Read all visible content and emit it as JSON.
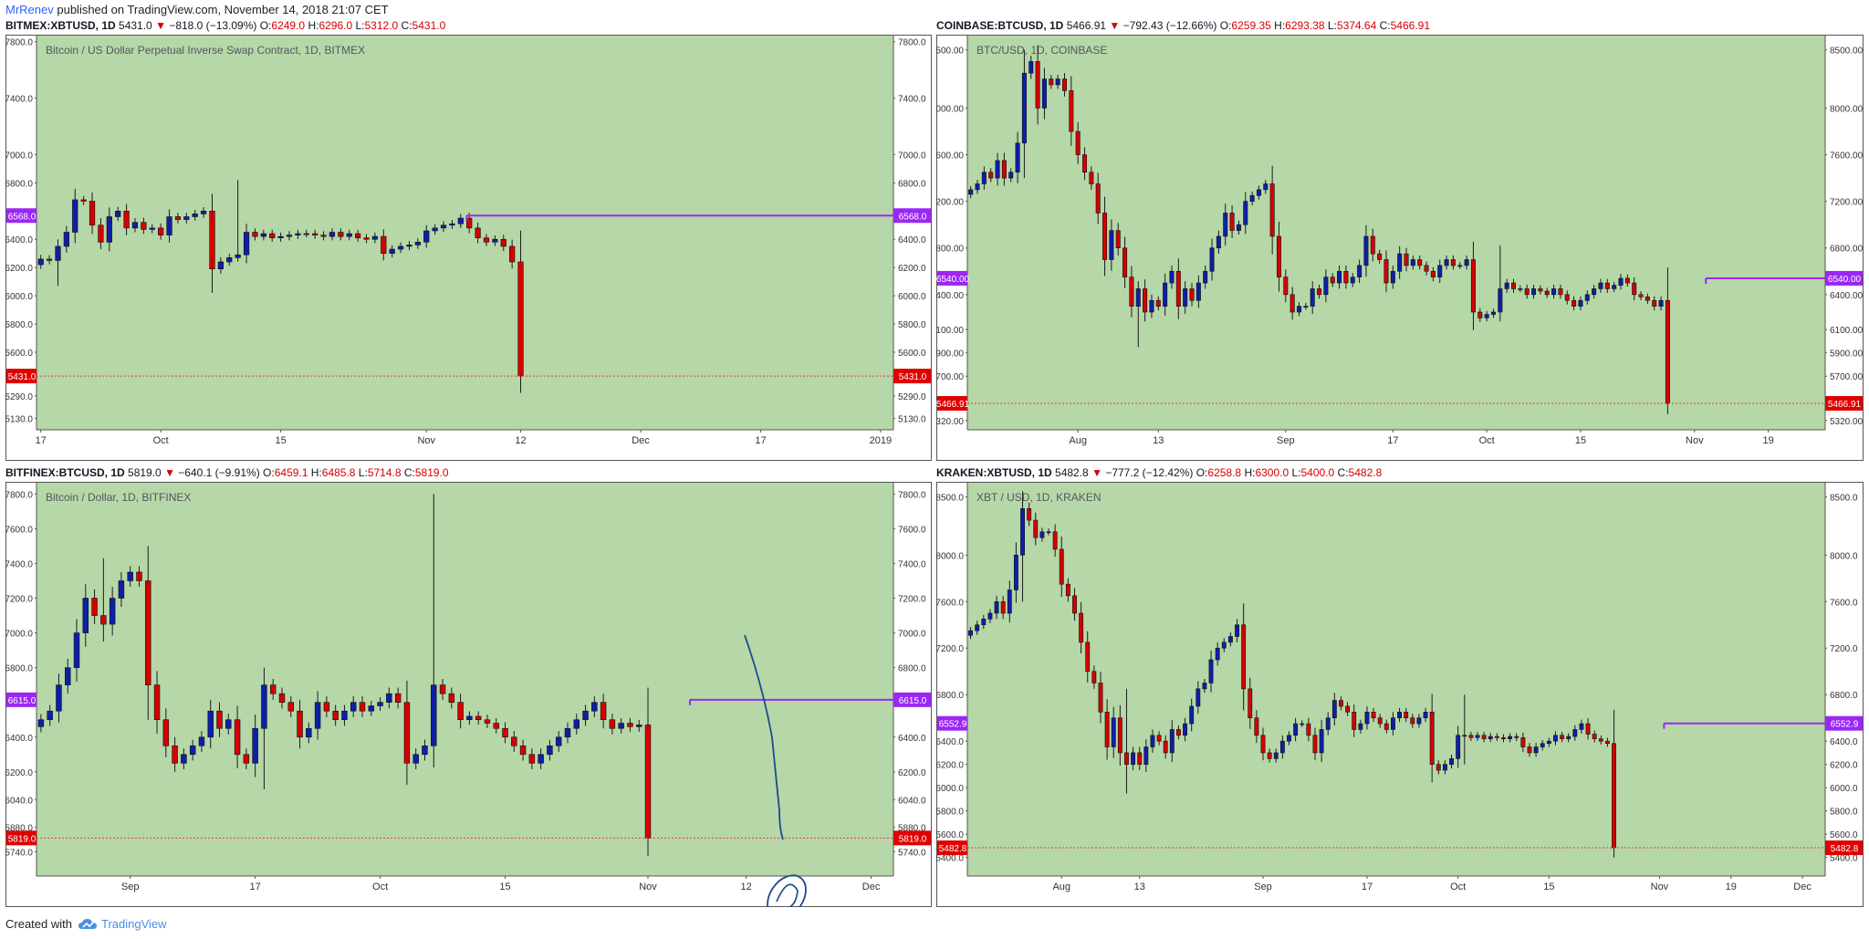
{
  "publisher": {
    "author": "MrRenev",
    "text": " published on TradingView.com, November 14, 2018 21:07 CET"
  },
  "footer": {
    "created_with": "Created with",
    "brand": "TradingView"
  },
  "colors": {
    "background": "#b6d7a8",
    "up": "#0d1fa8",
    "down": "#d50000",
    "level_line": "#9c27f5",
    "price_line": "#e53935"
  },
  "chart_data": [
    {
      "type": "candlestick",
      "header": {
        "symbol": "BITMEX:XBTUSD, 1D",
        "last": "5431.0",
        "change": "−818.0 (−13.09%)",
        "o": "6249.0",
        "h": "6296.0",
        "l": "5312.0",
        "c": "5431.0"
      },
      "title": "Bitcoin / US Dollar Perpetual Inverse Swap Contract, 1D, BITMEX",
      "ylim": [
        5050,
        7850
      ],
      "y_ticks": [
        "5130.0",
        "5290.0",
        "5600.0",
        "5800.0",
        "6000.0",
        "6200.0",
        "6400.0",
        "6800.0",
        "7000.0",
        "7400.0",
        "7800.0"
      ],
      "x_ticks": [
        {
          "d": 0,
          "label": "17"
        },
        {
          "d": 14,
          "label": "Oct"
        },
        {
          "d": 28,
          "label": "15"
        },
        {
          "d": 45,
          "label": "Nov"
        },
        {
          "d": 56,
          "label": "12"
        },
        {
          "d": 70,
          "label": "Dec"
        },
        {
          "d": 84,
          "label": "17"
        },
        {
          "d": 98,
          "label": "2019"
        }
      ],
      "level": {
        "value": 6568.0,
        "label": "6568.0",
        "from_index": 50
      },
      "last_price": {
        "value": 5431.0,
        "label": "5431.0"
      },
      "closes": [
        6260,
        6250,
        6350,
        6450,
        6680,
        6670,
        6500,
        6380,
        6560,
        6600,
        6480,
        6520,
        6470,
        6480,
        6430,
        6560,
        6540,
        6560,
        6580,
        6600,
        6190,
        6240,
        6270,
        6290,
        6450,
        6420,
        6440,
        6410,
        6420,
        6430,
        6440,
        6440,
        6430,
        6420,
        6450,
        6420,
        6440,
        6410,
        6400,
        6420,
        6300,
        6330,
        6350,
        6360,
        6380,
        6460,
        6480,
        6500,
        6510,
        6550,
        6480,
        6410,
        6380,
        6400,
        6350,
        6240,
        5431
      ],
      "wick_frac": 0.25,
      "spikes": [
        {
          "i": 23,
          "high": 6820,
          "low": 6300
        },
        {
          "i": 20,
          "high": 6500,
          "low": 6020
        },
        {
          "i": 2,
          "high": 6400,
          "low": 6070
        }
      ],
      "last_low": 5312,
      "plot": {
        "x0": 50,
        "x1": 975,
        "y0": 36,
        "y1": 478
      },
      "d_start": 0,
      "d_end": 100
    },
    {
      "type": "candlestick",
      "header": {
        "symbol": "COINBASE:BTCUSD, 1D",
        "last": "5466.91",
        "change": "−792.43 (−12.66%)",
        "o": "6259.35",
        "h": "6293.38",
        "l": "5374.64",
        "c": "5466.91"
      },
      "title": "BTC/USD, 1D, COINBASE",
      "ylim": [
        5240,
        8630
      ],
      "y_ticks": [
        "5320.00",
        "5500.00",
        "5700.00",
        "5900.00",
        "6100.00",
        "6400.00",
        "6800.00",
        "7200.00",
        "7600.00",
        "8000.00",
        "8500.00"
      ],
      "x_ticks": [
        {
          "d": 16,
          "label": "Aug"
        },
        {
          "d": 28,
          "label": "13"
        },
        {
          "d": 47,
          "label": "Sep"
        },
        {
          "d": 63,
          "label": "17"
        },
        {
          "d": 77,
          "label": "Oct"
        },
        {
          "d": 91,
          "label": "15"
        },
        {
          "d": 108,
          "label": "Nov"
        },
        {
          "d": 119,
          "label": "19"
        }
      ],
      "level": {
        "value": 6540.0,
        "label": "6540.00",
        "from_index": 110
      },
      "last_price": {
        "value": 5466.91,
        "label": "5466.91"
      },
      "closes": [
        7300,
        7350,
        7450,
        7400,
        7550,
        7400,
        7450,
        7700,
        8300,
        8400,
        8000,
        8250,
        8200,
        8250,
        8150,
        7800,
        7600,
        7450,
        7350,
        7100,
        6700,
        6950,
        6800,
        6550,
        6300,
        6450,
        6250,
        6350,
        6300,
        6500,
        6600,
        6300,
        6450,
        6350,
        6500,
        6600,
        6800,
        6900,
        7100,
        6950,
        7000,
        7200,
        7250,
        7300,
        7350,
        6900,
        6550,
        6400,
        6250,
        6300,
        6300,
        6450,
        6400,
        6550,
        6500,
        6600,
        6500,
        6550,
        6650,
        6900,
        6750,
        6700,
        6500,
        6600,
        6750,
        6650,
        6700,
        6650,
        6600,
        6550,
        6650,
        6700,
        6650,
        6650,
        6700,
        6250,
        6200,
        6230,
        6250,
        6450,
        6500,
        6450,
        6450,
        6400,
        6450,
        6430,
        6400,
        6450,
        6400,
        6350,
        6300,
        6350,
        6400,
        6450,
        6500,
        6450,
        6480,
        6540,
        6500,
        6400,
        6380,
        6350,
        6300,
        6350,
        5466.91
      ],
      "wick_frac": 0.3,
      "spikes": [
        {
          "i": 8,
          "high": 8500,
          "low": 7400
        },
        {
          "i": 79,
          "high": 6820,
          "low": 6200
        },
        {
          "i": 25,
          "high": 6400,
          "low": 5950
        }
      ],
      "last_low": 5374,
      "plot": {
        "x0": 1031,
        "x1": 1985,
        "y0": 36,
        "y1": 478
      },
      "d_start": 0,
      "d_end": 128
    },
    {
      "type": "candlestick",
      "header": {
        "symbol": "BITFINEX:BTCUSD, 1D",
        "last": "5819.0",
        "change": "−640.1 (−9.91%)",
        "o": "6459.1",
        "h": "6485.8",
        "l": "5714.8",
        "c": "5819.0"
      },
      "title": "Bitcoin / Dollar, 1D, BITFINEX",
      "ylim": [
        5600,
        7870
      ],
      "y_ticks": [
        "5740.0",
        "5880.0",
        "6040.0",
        "6200.0",
        "6400.0",
        "6800.0",
        "7000.0",
        "7200.0",
        "7400.0",
        "7600.0",
        "7800.0"
      ],
      "x_ticks": [
        {
          "d": 10,
          "label": "Sep"
        },
        {
          "d": 24,
          "label": "17"
        },
        {
          "d": 38,
          "label": "Oct"
        },
        {
          "d": 52,
          "label": "15"
        },
        {
          "d": 68,
          "label": "Nov"
        },
        {
          "d": 79,
          "label": "12"
        },
        {
          "d": 93,
          "label": "Dec"
        }
      ],
      "level": {
        "value": 6615.0,
        "label": "6615.0",
        "from_index": 73
      },
      "last_price": {
        "value": 5819.0,
        "label": "5819.0"
      },
      "closes": [
        6500,
        6550,
        6700,
        6800,
        7000,
        7200,
        7100,
        7050,
        7200,
        7300,
        7350,
        7300,
        6700,
        6500,
        6350,
        6250,
        6300,
        6350,
        6400,
        6550,
        6450,
        6500,
        6300,
        6250,
        6450,
        6700,
        6650,
        6600,
        6550,
        6400,
        6450,
        6600,
        6550,
        6500,
        6550,
        6600,
        6550,
        6580,
        6600,
        6650,
        6600,
        6250,
        6300,
        6350,
        6700,
        6650,
        6600,
        6500,
        6520,
        6500,
        6480,
        6450,
        6400,
        6350,
        6300,
        6250,
        6300,
        6350,
        6400,
        6450,
        6500,
        6550,
        6600,
        6500,
        6450,
        6480,
        6460,
        6470,
        5819
      ],
      "wick_frac": 0.3,
      "spikes": [
        {
          "i": 44,
          "high": 7800,
          "low": 6300
        },
        {
          "i": 7,
          "high": 7430,
          "low": 6950
        },
        {
          "i": 25,
          "high": 6800,
          "low": 6100
        }
      ],
      "last_low": 5714,
      "plot": {
        "x0": 50,
        "x1": 975,
        "y0": 535,
        "y1": 968
      },
      "d_start": 0,
      "d_end": 96
    },
    {
      "type": "candlestick",
      "header": {
        "symbol": "KRAKEN:XBTUSD, 1D",
        "last": "5482.8",
        "change": "−777.2 (−12.42%)",
        "o": "6258.8",
        "h": "6300.0",
        "l": "5400.0",
        "c": "5482.8"
      },
      "title": "XBT / USD, 1D, KRAKEN",
      "ylim": [
        5240,
        8630
      ],
      "y_ticks": [
        "5400.0",
        "5600.0",
        "5800.0",
        "6000.0",
        "6200.0",
        "6400.0",
        "6800.0",
        "7200.0",
        "7600.0",
        "8000.0",
        "8500.0"
      ],
      "x_ticks": [
        {
          "d": 14,
          "label": "Aug"
        },
        {
          "d": 26,
          "label": "13"
        },
        {
          "d": 45,
          "label": "Sep"
        },
        {
          "d": 61,
          "label": "17"
        },
        {
          "d": 75,
          "label": "Oct"
        },
        {
          "d": 89,
          "label": "15"
        },
        {
          "d": 106,
          "label": "Nov"
        },
        {
          "d": 117,
          "label": "19"
        },
        {
          "d": 128,
          "label": "Dec"
        }
      ],
      "level": {
        "value": 6552.9,
        "label": "6552.9",
        "from_index": 107
      },
      "last_price": {
        "value": 5482.8,
        "label": "5482.8"
      },
      "closes": [
        7350,
        7400,
        7450,
        7500,
        7600,
        7500,
        7700,
        8000,
        8400,
        8300,
        8150,
        8200,
        8200,
        8050,
        7750,
        7650,
        7500,
        7250,
        7000,
        6900,
        6650,
        6350,
        6600,
        6300,
        6200,
        6300,
        6200,
        6350,
        6450,
        6400,
        6300,
        6500,
        6450,
        6550,
        6700,
        6850,
        6900,
        7100,
        7200,
        7250,
        7300,
        7400,
        6850,
        6600,
        6450,
        6300,
        6250,
        6300,
        6400,
        6450,
        6550,
        6550,
        6450,
        6300,
        6500,
        6600,
        6750,
        6700,
        6650,
        6500,
        6550,
        6650,
        6600,
        6550,
        6500,
        6600,
        6650,
        6600,
        6550,
        6600,
        6650,
        6200,
        6150,
        6200,
        6250,
        6450,
        6450,
        6430,
        6450,
        6420,
        6440,
        6430,
        6420,
        6440,
        6430,
        6350,
        6300,
        6350,
        6380,
        6400,
        6450,
        6420,
        6440,
        6500,
        6550,
        6460,
        6420,
        6400,
        6380,
        5482.8
      ],
      "wick_frac": 0.3,
      "spikes": [
        {
          "i": 24,
          "high": 6850,
          "low": 5950
        },
        {
          "i": 8,
          "high": 8550,
          "low": 7600
        },
        {
          "i": 76,
          "high": 6800,
          "low": 6200
        }
      ],
      "last_low": 5400,
      "plot": {
        "x0": 1031,
        "x1": 1985,
        "y0": 535,
        "y1": 968
      },
      "d_start": 0,
      "d_end": 132
    }
  ]
}
